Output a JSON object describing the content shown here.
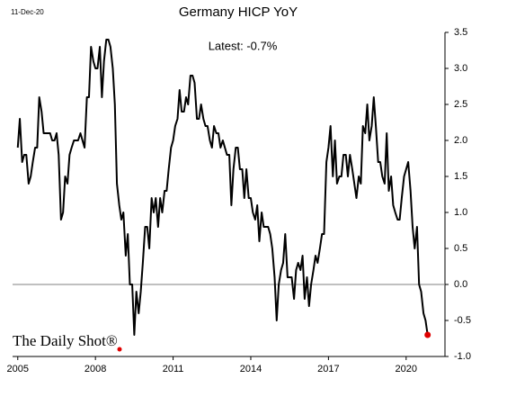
{
  "chart_data": {
    "type": "line",
    "title": "Germany HICP YoY",
    "date_label": "11-Dec-20",
    "annotation": "Latest:  -0.7%",
    "source": "The Daily Shot®",
    "xlim": [
      2004.8,
      2021.5
    ],
    "xticks": [
      2005,
      2008,
      2011,
      2014,
      2017,
      2020
    ],
    "ylim": [
      -1.0,
      3.5
    ],
    "yticks": [
      {
        "value": -1.0,
        "label": "-1.0"
      },
      -0.5,
      {
        "value": 0,
        "label": "0.0"
      },
      0.5,
      {
        "value": 1,
        "label": "1.0"
      },
      1.5,
      {
        "value": 2,
        "label": "2.0"
      },
      2.5,
      {
        "value": 3,
        "label": "3.0"
      },
      3.5
    ],
    "zero_line": true,
    "highlight_color": "#e00000",
    "series": [
      {
        "name": "Germany HICP YoY",
        "color": "#000000",
        "x": [
          2005.0,
          2005.08,
          2005.17,
          2005.25,
          2005.33,
          2005.42,
          2005.5,
          2005.58,
          2005.67,
          2005.75,
          2005.83,
          2005.92,
          2006.0,
          2006.08,
          2006.17,
          2006.25,
          2006.33,
          2006.42,
          2006.5,
          2006.58,
          2006.67,
          2006.75,
          2006.83,
          2006.92,
          2007.0,
          2007.08,
          2007.17,
          2007.25,
          2007.33,
          2007.42,
          2007.5,
          2007.58,
          2007.67,
          2007.75,
          2007.83,
          2007.92,
          2008.0,
          2008.08,
          2008.17,
          2008.25,
          2008.33,
          2008.42,
          2008.5,
          2008.58,
          2008.67,
          2008.75,
          2008.83,
          2008.92,
          2009.0,
          2009.08,
          2009.17,
          2009.25,
          2009.33,
          2009.42,
          2009.5,
          2009.58,
          2009.67,
          2009.75,
          2009.83,
          2009.92,
          2010.0,
          2010.08,
          2010.17,
          2010.25,
          2010.33,
          2010.42,
          2010.5,
          2010.58,
          2010.67,
          2010.75,
          2010.83,
          2010.92,
          2011.0,
          2011.08,
          2011.17,
          2011.25,
          2011.33,
          2011.42,
          2011.5,
          2011.58,
          2011.67,
          2011.75,
          2011.83,
          2011.92,
          2012.0,
          2012.08,
          2012.17,
          2012.25,
          2012.33,
          2012.42,
          2012.5,
          2012.58,
          2012.67,
          2012.75,
          2012.83,
          2012.92,
          2013.0,
          2013.08,
          2013.17,
          2013.25,
          2013.33,
          2013.42,
          2013.5,
          2013.58,
          2013.67,
          2013.75,
          2013.83,
          2013.92,
          2014.0,
          2014.08,
          2014.17,
          2014.25,
          2014.33,
          2014.42,
          2014.5,
          2014.58,
          2014.67,
          2014.75,
          2014.83,
          2014.92,
          2015.0,
          2015.08,
          2015.17,
          2015.25,
          2015.33,
          2015.42,
          2015.5,
          2015.58,
          2015.67,
          2015.75,
          2015.83,
          2015.92,
          2016.0,
          2016.08,
          2016.17,
          2016.25,
          2016.33,
          2016.42,
          2016.5,
          2016.58,
          2016.67,
          2016.75,
          2016.83,
          2016.92,
          2017.0,
          2017.08,
          2017.17,
          2017.25,
          2017.33,
          2017.42,
          2017.5,
          2017.58,
          2017.67,
          2017.75,
          2017.83,
          2017.92,
          2018.0,
          2018.08,
          2018.17,
          2018.25,
          2018.33,
          2018.42,
          2018.5,
          2018.58,
          2018.67,
          2018.75,
          2018.83,
          2018.92,
          2019.0,
          2019.08,
          2019.17,
          2019.25,
          2019.33,
          2019.42,
          2019.5,
          2019.58,
          2019.67,
          2019.75,
          2019.83,
          2019.92,
          2020.0,
          2020.08,
          2020.17,
          2020.25,
          2020.33,
          2020.42,
          2020.5,
          2020.58,
          2020.67,
          2020.75,
          2020.83
        ],
        "values": [
          1.9,
          2.3,
          1.7,
          1.8,
          1.8,
          1.4,
          1.5,
          1.7,
          1.9,
          1.9,
          2.6,
          2.4,
          2.1,
          2.1,
          2.1,
          2.1,
          2.0,
          2.0,
          2.1,
          1.8,
          0.9,
          1.0,
          1.5,
          1.4,
          1.8,
          1.9,
          2.0,
          2.0,
          2.0,
          2.1,
          2.0,
          1.9,
          2.6,
          2.6,
          3.3,
          3.1,
          3.0,
          3.0,
          3.3,
          2.6,
          3.1,
          3.4,
          3.4,
          3.3,
          3.0,
          2.5,
          1.4,
          1.1,
          0.9,
          1.0,
          0.4,
          0.7,
          0.0,
          0.0,
          -0.7,
          -0.1,
          -0.4,
          -0.1,
          0.3,
          0.8,
          0.8,
          0.5,
          1.2,
          1.0,
          1.2,
          0.8,
          1.2,
          1.0,
          1.3,
          1.3,
          1.6,
          1.9,
          2.0,
          2.2,
          2.3,
          2.7,
          2.4,
          2.4,
          2.6,
          2.5,
          2.9,
          2.9,
          2.8,
          2.3,
          2.3,
          2.5,
          2.3,
          2.2,
          2.2,
          2.0,
          1.9,
          2.2,
          2.1,
          2.1,
          1.9,
          2.0,
          1.9,
          1.8,
          1.8,
          1.1,
          1.6,
          1.9,
          1.9,
          1.6,
          1.6,
          1.2,
          1.6,
          1.2,
          1.2,
          1.0,
          0.9,
          1.1,
          0.6,
          1.0,
          0.8,
          0.8,
          0.8,
          0.7,
          0.5,
          0.1,
          -0.5,
          0.0,
          0.2,
          0.3,
          0.7,
          0.1,
          0.1,
          0.1,
          -0.2,
          0.2,
          0.3,
          0.2,
          0.4,
          -0.2,
          0.1,
          -0.3,
          0.0,
          0.2,
          0.4,
          0.3,
          0.5,
          0.7,
          0.7,
          1.7,
          1.9,
          2.2,
          1.5,
          2.0,
          1.4,
          1.5,
          1.5,
          1.8,
          1.8,
          1.5,
          1.8,
          1.6,
          1.4,
          1.2,
          1.5,
          1.4,
          2.2,
          2.1,
          2.5,
          2.0,
          2.2,
          2.6,
          2.2,
          1.7,
          1.7,
          1.5,
          1.4,
          2.1,
          1.3,
          1.5,
          1.1,
          1.0,
          0.9,
          0.9,
          1.2,
          1.5,
          1.6,
          1.7,
          1.3,
          0.8,
          0.5,
          0.8,
          0.0,
          -0.1,
          -0.4,
          -0.5,
          -0.7
        ]
      }
    ]
  }
}
